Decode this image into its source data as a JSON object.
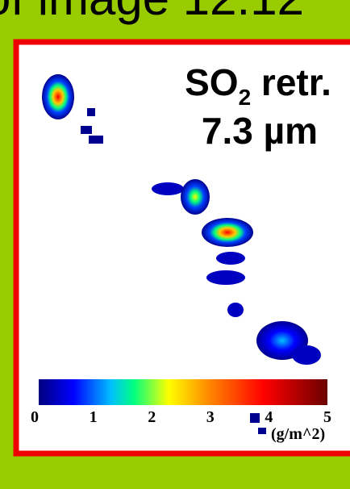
{
  "header": {
    "title": "of image 12:12"
  },
  "panel": {
    "title_main": "SO",
    "title_sub": "2",
    "title_rest": " retr.",
    "title_line2": "7.3 µm"
  },
  "colorbar": {
    "ticks": [
      0,
      1,
      2,
      3,
      4,
      5
    ],
    "range": [
      0,
      5
    ],
    "unit": "(g/m^2)"
  }
}
